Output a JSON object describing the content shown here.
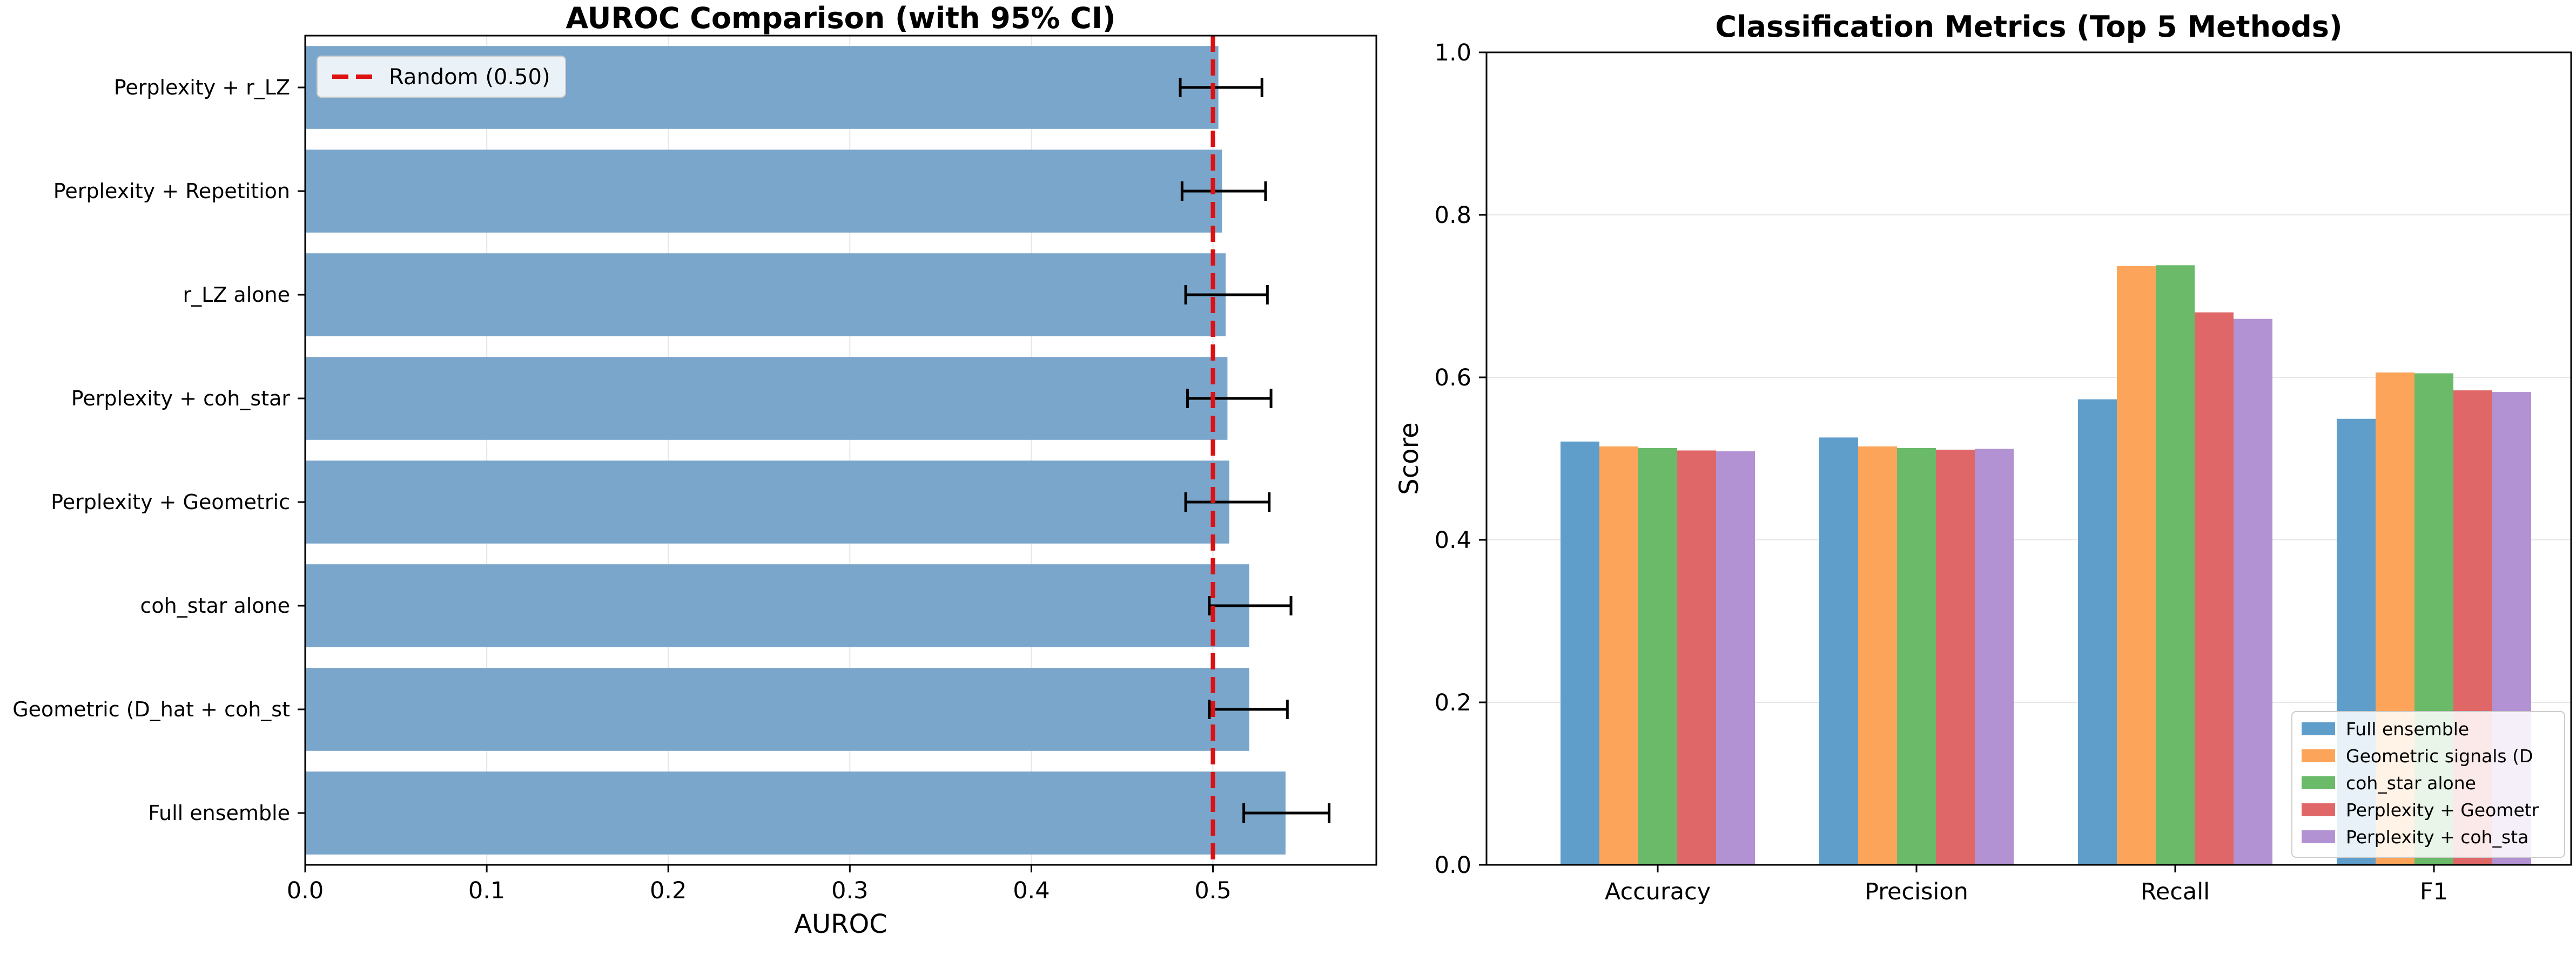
{
  "chart_data": [
    {
      "type": "bar",
      "orientation": "horizontal",
      "title": "AUROC Comparison (with 95% CI)",
      "xlabel": "AUROC",
      "ylabel": "",
      "xlim": [
        0,
        0.59
      ],
      "xticks": [
        "0.0",
        "0.1",
        "0.2",
        "0.3",
        "0.4",
        "0.5"
      ],
      "grid": "x",
      "categories": [
        "Perplexity + r_LZ",
        "Perplexity + Repetition",
        "r_LZ alone",
        "Perplexity + coh_star",
        "Perplexity + Geometric",
        "coh_star alone",
        "Geometric (D_hat + coh_st",
        "Full ensemble"
      ],
      "values": [
        0.503,
        0.505,
        0.507,
        0.508,
        0.509,
        0.52,
        0.52,
        0.54
      ],
      "ci_low": [
        0.482,
        0.483,
        0.485,
        0.486,
        0.485,
        0.498,
        0.498,
        0.517
      ],
      "ci_high": [
        0.527,
        0.529,
        0.53,
        0.532,
        0.531,
        0.543,
        0.541,
        0.564
      ],
      "bar_color": "#7ba6cb",
      "reference_line": {
        "value": 0.5,
        "label": "Random (0.50)",
        "color": "#dd1111"
      },
      "legend_position": "top-left"
    },
    {
      "type": "bar",
      "title": "Classification Metrics (Top 5 Methods)",
      "xlabel": "",
      "ylabel": "Score",
      "ylim": [
        0,
        1.0
      ],
      "yticks": [
        "0.0",
        "0.2",
        "0.4",
        "0.6",
        "0.8",
        "1.0"
      ],
      "grid": "y",
      "categories": [
        "Accuracy",
        "Precision",
        "Recall",
        "F1"
      ],
      "series": [
        {
          "name": "Full ensemble",
          "color": "#5f9ecb",
          "values": [
            0.521,
            0.526,
            0.573,
            0.549
          ]
        },
        {
          "name": "Geometric signals (D",
          "color": "#fca55a",
          "values": [
            0.515,
            0.515,
            0.737,
            0.606
          ]
        },
        {
          "name": "coh_star alone",
          "color": "#6aba6a",
          "values": [
            0.513,
            0.513,
            0.738,
            0.605
          ]
        },
        {
          "name": "Perplexity + Geometr",
          "color": "#e06767",
          "values": [
            0.51,
            0.511,
            0.68,
            0.584
          ]
        },
        {
          "name": "Perplexity + coh_sta",
          "color": "#b292d2",
          "values": [
            0.509,
            0.512,
            0.672,
            0.582
          ]
        }
      ],
      "legend_position": "bottom-right"
    }
  ]
}
